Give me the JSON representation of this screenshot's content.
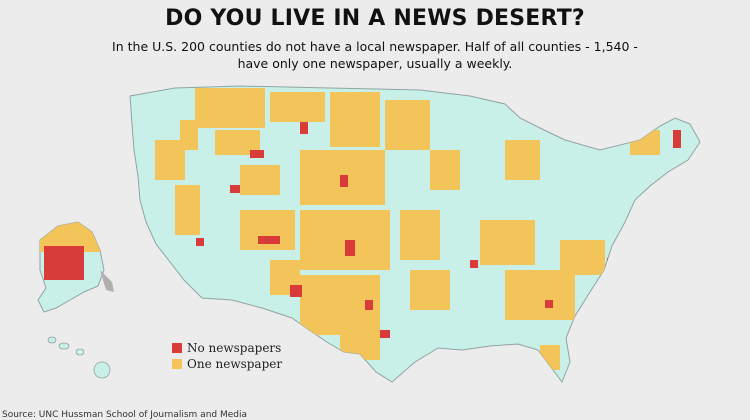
{
  "title": "DO YOU LIVE IN A NEWS DESERT?",
  "subtitle_line1": "In the U.S. 200 counties do not have a local newspaper.  Half of all counties - 1,540 -",
  "subtitle_line2": "have only one newspaper, usually a weekly.",
  "legend": [
    {
      "label": "No newspapers",
      "color": "#d93a3a"
    },
    {
      "label": "One newspaper",
      "color": "#f2c45a"
    }
  ],
  "colors": {
    "background": "#ececec",
    "multiple_newspapers": "#c9f0e8",
    "border": "#9aa"
  },
  "source": "Source: UNC Hussman School of Journalism and Media"
}
